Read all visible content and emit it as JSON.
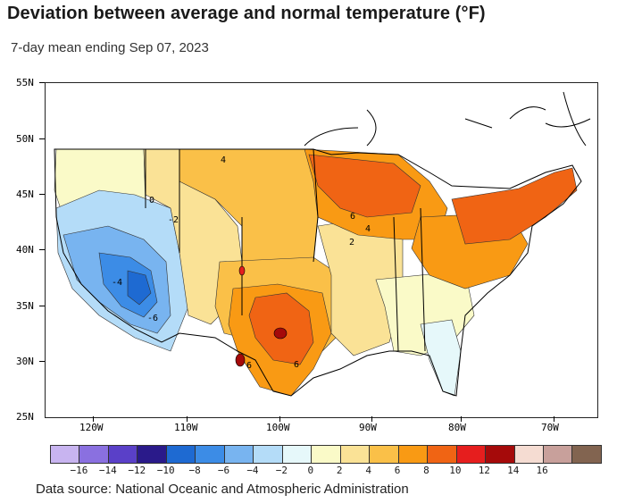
{
  "title": "Deviation between average and normal temperature (°F)",
  "subtitle": "7-day mean ending Sep 07, 2023",
  "source": "Data source: National Oceanic and Atmospheric Administration",
  "latitude_labels": [
    "55N",
    "50N",
    "45N",
    "40N",
    "35N",
    "30N",
    "25N"
  ],
  "longitude_labels": [
    "120W",
    "110W",
    "100W",
    "90W",
    "80W",
    "70W"
  ],
  "contour_labels": [
    "4",
    "0",
    "-2",
    "-4",
    "-6",
    "6",
    "4",
    "2",
    "6",
    "6"
  ],
  "legend": {
    "colors": [
      "#c8b4f0",
      "#8a70e0",
      "#5a40c8",
      "#2a1a8a",
      "#1e6ad2",
      "#3c8ce6",
      "#78b4f0",
      "#b4dcf8",
      "#e6f8fa",
      "#fafac8",
      "#fae296",
      "#fac048",
      "#f99a14",
      "#f06414",
      "#e61e1e",
      "#a50a0a",
      "#f5dcd2",
      "#c8a09b",
      "#826450"
    ],
    "labels": [
      "−16",
      "−14",
      "−12",
      "−10",
      "−8",
      "−6",
      "−4",
      "−2",
      "0",
      "2",
      "4",
      "6",
      "8",
      "10",
      "12",
      "14",
      "16"
    ]
  },
  "regions": {
    "pacific_nw": "#fafac8",
    "great_basin_cool": "#b4dcf8",
    "southwest_cold": "#78b4f0",
    "southwest_core": "#3c8ce6",
    "northern_rockies": "#fae296",
    "plains_north": "#fac048",
    "great_lakes": "#f99a14",
    "great_lakes_core": "#f06414",
    "central_plains": "#fac048",
    "texas": "#f99a14",
    "texas_core": "#f06414",
    "mississippi": "#fae296",
    "southeast": "#fafac8",
    "florida": "#e6f8fa",
    "northeast": "#f06414",
    "mid_atlantic": "#f99a14",
    "cold_pocket": "#1e6ad2"
  }
}
